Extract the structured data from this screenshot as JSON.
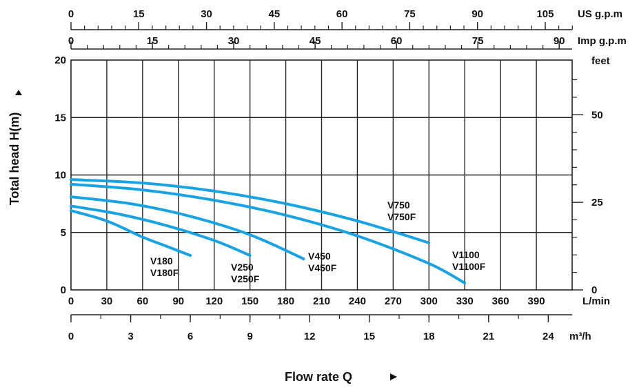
{
  "chart_data": {
    "type": "line",
    "title": "",
    "xlabel": "Flow rate Q",
    "ylabel": "Total head H(m)",
    "x_unit": "L/min",
    "xlim": [
      0,
      420
    ],
    "ylim": [
      0,
      20
    ],
    "x_ticks": [
      "0",
      "30",
      "60",
      "90",
      "120",
      "150",
      "180",
      "210",
      "240",
      "270",
      "300",
      "330",
      "360",
      "390"
    ],
    "y_ticks": [
      "0",
      "5",
      "10",
      "15",
      "20"
    ],
    "grid": true,
    "secondary_axes": {
      "us_gpm": {
        "unit": "US g.p.m",
        "ticks": [
          "0",
          "15",
          "30",
          "45",
          "60",
          "75",
          "90",
          "105"
        ]
      },
      "imp_gpm": {
        "unit": "Imp g.p.m",
        "ticks": [
          "0",
          "15",
          "30",
          "45",
          "60",
          "75",
          "90"
        ]
      },
      "m3h": {
        "unit": "m³/h",
        "ticks": [
          "0",
          "3",
          "6",
          "9",
          "12",
          "15",
          "18",
          "21",
          "24"
        ]
      },
      "feet": {
        "unit": "feet",
        "ticks": [
          "0",
          "25",
          "50"
        ]
      }
    },
    "series_color": "#1aa3e0",
    "series": [
      {
        "name": "V180 / V180F",
        "label_lines": [
          "V180",
          "V180F"
        ],
        "x": [
          0,
          30,
          60,
          80,
          100
        ],
        "y": [
          6.9,
          6.0,
          4.6,
          3.8,
          3.0
        ]
      },
      {
        "name": "V250 / V250F",
        "label_lines": [
          "V250",
          "V250F"
        ],
        "x": [
          0,
          40,
          80,
          120,
          150
        ],
        "y": [
          7.3,
          6.6,
          5.6,
          4.3,
          3.0
        ]
      },
      {
        "name": "V450 / V450F",
        "label_lines": [
          "V450",
          "V450F"
        ],
        "x": [
          0,
          50,
          100,
          150,
          195
        ],
        "y": [
          8.1,
          7.5,
          6.4,
          4.8,
          2.7
        ]
      },
      {
        "name": "V750 / V750F",
        "label_lines": [
          "V750",
          "V750F"
        ],
        "x": [
          0,
          60,
          120,
          180,
          240,
          300
        ],
        "y": [
          9.6,
          9.3,
          8.6,
          7.5,
          6.0,
          4.1
        ]
      },
      {
        "name": "V1100 / V1100F",
        "label_lines": [
          "V1100",
          "V1100F"
        ],
        "x": [
          0,
          60,
          120,
          180,
          240,
          300,
          330
        ],
        "y": [
          9.2,
          8.7,
          7.8,
          6.5,
          4.7,
          2.3,
          0.6
        ]
      }
    ]
  }
}
